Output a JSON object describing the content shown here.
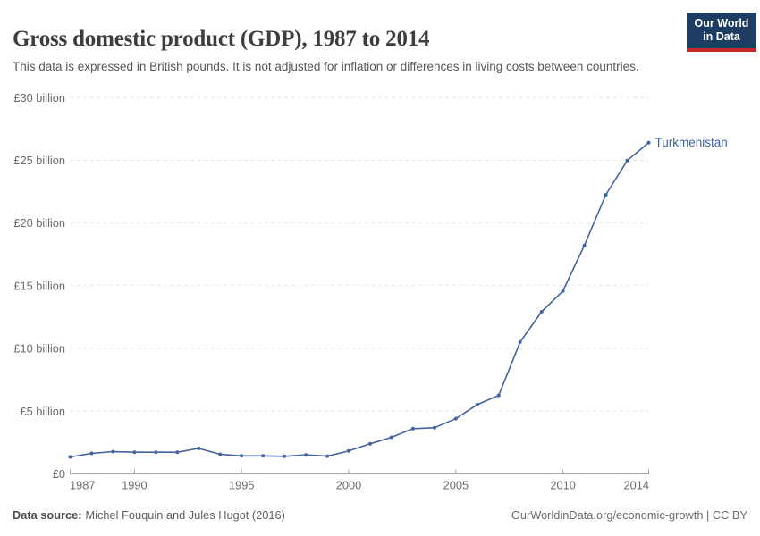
{
  "header": {
    "title": "Gross domestic product (GDP), 1987 to 2014",
    "subtitle": "This data is expressed in British pounds. It is not adjusted for inflation or differences in living costs between countries.",
    "logo": {
      "line1": "Our World",
      "line2": "in Data",
      "bg_color": "#1d3d63",
      "accent_color": "#c5292a"
    }
  },
  "chart_data": {
    "type": "line",
    "title": "Gross domestic product (GDP), 1987 to 2014",
    "xlabel": "",
    "ylabel": "",
    "xlim": [
      1987,
      2014
    ],
    "ylim": [
      0,
      30
    ],
    "grid": "horizontal-dashed",
    "legend_position": "end-of-line-label",
    "x_ticks": [
      1987,
      1990,
      1995,
      2000,
      2005,
      2010,
      2014
    ],
    "y_ticks": [
      0,
      5,
      10,
      15,
      20,
      25,
      30
    ],
    "y_tick_labels": [
      "£0",
      "£5 billion",
      "£10 billion",
      "£15 billion",
      "£20 billion",
      "£25 billion",
      "£30 billion"
    ],
    "unit": "British pounds (billions)",
    "series": [
      {
        "name": "Turkmenistan",
        "color": "#44639e",
        "x": [
          1987,
          1988,
          1989,
          1990,
          1991,
          1992,
          1993,
          1994,
          1995,
          1996,
          1997,
          1998,
          1999,
          2000,
          2001,
          2002,
          2003,
          2004,
          2005,
          2006,
          2007,
          2008,
          2009,
          2010,
          2011,
          2012,
          2013,
          2014
        ],
        "values": [
          1.35,
          1.64,
          1.78,
          1.73,
          1.73,
          1.73,
          2.04,
          1.57,
          1.44,
          1.44,
          1.4,
          1.52,
          1.42,
          1.83,
          2.4,
          2.92,
          3.61,
          3.68,
          4.41,
          5.53,
          6.26,
          10.51,
          12.93,
          14.59,
          18.22,
          22.26,
          24.98,
          26.41
        ]
      }
    ],
    "colors": {
      "gridline": "#e2e2e2",
      "axis": "#a3a3a3",
      "tick_label": "#6b6b6b"
    }
  },
  "footer": {
    "source_label": "Data source:",
    "source_text": "Michel Fouquin and Jules Hugot (2016)",
    "credit": "OurWorldinData.org/economic-growth | CC BY"
  }
}
